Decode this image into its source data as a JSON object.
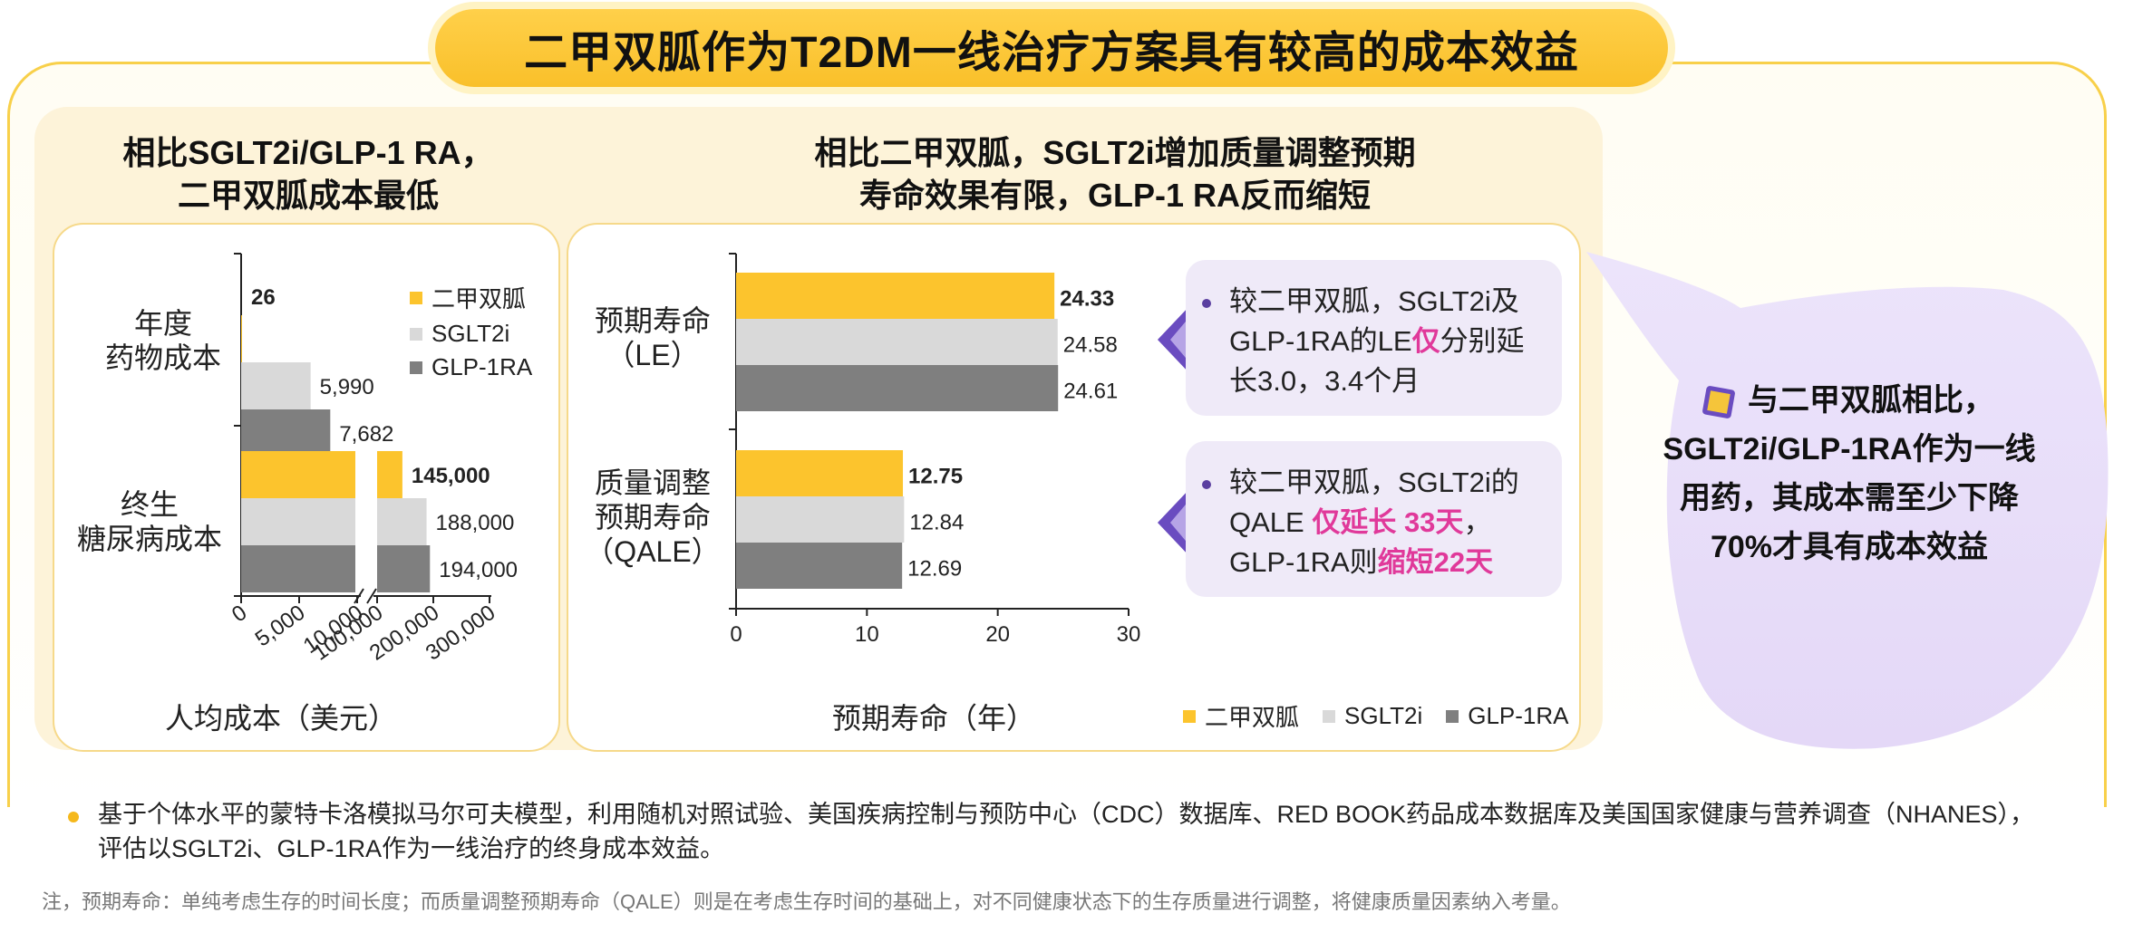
{
  "title": "二甲双胍作为T2DM一线治疗方案具有较高的成本效益",
  "left_heading": {
    "line1": "相比SGLT2i/GLP-1 RA，",
    "line2": "二甲双胍成本最低"
  },
  "mid_heading": {
    "line1": "相比二甲双胍，SGLT2i增加质量调整预期",
    "line2": "寿命效果有限，GLP-1 RA反而缩短"
  },
  "colors": {
    "metformin": "#fcc42d",
    "sglt2i": "#d9d9d9",
    "glp1ra": "#7f7f7f",
    "accent_pink": "#e0399a",
    "purple": "#5a3fa0"
  },
  "chart_data": [
    {
      "type": "bar",
      "orientation": "horizontal",
      "categories": [
        "年度\n药物成本",
        "终生\n糖尿病成本"
      ],
      "category_lines": [
        [
          "年度",
          "药物成本"
        ],
        [
          "终生",
          "糖尿病成本"
        ]
      ],
      "series": [
        {
          "name": "二甲双胍",
          "values": [
            26,
            145000
          ],
          "labels": [
            "26",
            "145,000"
          ]
        },
        {
          "name": "SGLT2i",
          "values": [
            5990,
            188000
          ],
          "labels": [
            "5,990",
            "188,000"
          ]
        },
        {
          "name": "GLP-1RA",
          "values": [
            7682,
            194000
          ],
          "labels": [
            "7,682",
            "194,000"
          ]
        }
      ],
      "xlabel": "人均成本（美元）",
      "axis_breaks": "broken axis: 0–10,000 then 100,000–300,000",
      "ticks_segment1": [
        "0",
        "5,000",
        "10,000"
      ],
      "ticks_segment2": [
        "100,000",
        "200,000",
        "300,000"
      ],
      "segment1_range": [
        0,
        10000
      ],
      "segment2_range": [
        100000,
        300000
      ],
      "legend": [
        "二甲双胍",
        "SGLT2i",
        "GLP-1RA"
      ],
      "legend_position": "top-right"
    },
    {
      "type": "bar",
      "orientation": "horizontal",
      "categories": [
        "预期寿命\n（LE）",
        "质量调整\n预期寿命\n（QALE）"
      ],
      "category_lines": [
        [
          "预期寿命",
          "（LE）"
        ],
        [
          "质量调整",
          "预期寿命",
          "（QALE）"
        ]
      ],
      "series": [
        {
          "name": "二甲双胍",
          "values": [
            24.33,
            12.75
          ],
          "labels": [
            "24.33",
            "12.75"
          ]
        },
        {
          "name": "SGLT2i",
          "values": [
            24.58,
            12.84
          ],
          "labels": [
            "24.58",
            "12.84"
          ]
        },
        {
          "name": "GLP-1RA",
          "values": [
            24.61,
            12.69
          ],
          "labels": [
            "24.61",
            "12.69"
          ]
        }
      ],
      "xlabel": "预期寿命（年）",
      "xlim": [
        0,
        30
      ],
      "ticks": [
        "0",
        "10",
        "20",
        "30"
      ],
      "legend": [
        "二甲双胍",
        "SGLT2i",
        "GLP-1RA"
      ],
      "legend_position": "bottom"
    }
  ],
  "callout1": {
    "p1": "较二甲双胍，SGLT2i及",
    "p2": "GLP-1RA的LE",
    "hl": "仅",
    "p3": "分别延",
    "p4": "长3.0，3.4个月"
  },
  "callout2": {
    "p1": "较二甲双胍，SGLT2i的",
    "p2": "QALE ",
    "hl1": "仅延长 33天",
    "p3": "，",
    "p4": "GLP-1RA则",
    "hl2": "缩短22天"
  },
  "bubble": {
    "line1": "与二甲双胍相比，",
    "line2": "SGLT2i/GLP-1RA作为一线",
    "line3": "用药，其成本需至少下降",
    "line4": "70%才具有成本效益"
  },
  "footnote": {
    "line1": "基于个体水平的蒙特卡洛模拟马尔可夫模型，利用随机对照试验、美国疾病控制与预防中心（CDC）数据库、RED BOOK药品成本数据库及美国国家健康与营养调查（NHANES），",
    "line2": "评估以SGLT2i、GLP-1RA作为一线治疗的终身成本效益。"
  },
  "note": "注，预期寿命：单纯考虑生存的时间长度；而质量调整预期寿命（QALE）则是在考虑生存时间的基础上，对不同健康状态下的生存质量进行调整，将健康质量因素纳入考量。"
}
